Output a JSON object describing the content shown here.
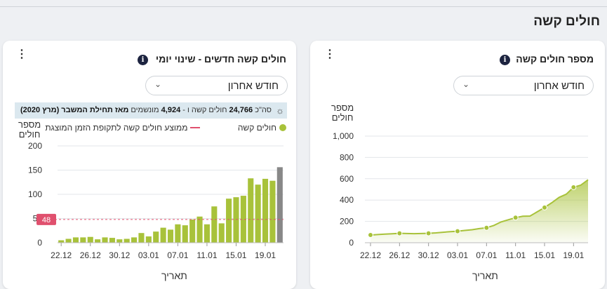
{
  "section": {
    "title": "חולים קשה"
  },
  "left_card": {
    "title": "חולים קשה חדשים - שינוי יומי",
    "info": "i",
    "menu": "⋮",
    "dropdown": "חודש אחרון",
    "banner": {
      "icon": "lightbulb-icon",
      "prefix": "סה\"כ",
      "total": "24,766",
      "mid": "חולים קשה ו -",
      "ventilated": "4,924",
      "suffix_text": "מונשמים",
      "since": "מאז תחילת המשבר (מרץ 2020)"
    },
    "legend_series": "חולים קשה",
    "legend_avg": "ממוצע חולים קשה לתקופת הזמן המוצגת",
    "ylabel_line1": "מספר",
    "ylabel_line2": "חולים",
    "xlabel": "תאריך",
    "avg_badge": "48"
  },
  "right_card": {
    "title": "מספר חולים קשה",
    "info": "i",
    "menu": "⋮",
    "dropdown": "חודש אחרון",
    "ylabel_line1": "מספר",
    "ylabel_line2": "חולים",
    "xlabel": "תאריך"
  },
  "chart_data": [
    {
      "type": "bar",
      "title": "חולים קשה חדשים - שינוי יומי",
      "xlabel": "תאריך",
      "ylabel": "מספר חולים",
      "ylim": [
        0,
        200
      ],
      "yticks": [
        0,
        50,
        100,
        150,
        200
      ],
      "tick_labels": [
        "22.12",
        "26.12",
        "30.12",
        "03.01",
        "07.01",
        "11.01",
        "15.01",
        "19.01"
      ],
      "series": [
        {
          "name": "חולים קשה",
          "color": "#a8c23a",
          "values": [
            5,
            8,
            11,
            11,
            12,
            7,
            11,
            10,
            7,
            8,
            11,
            20,
            13,
            23,
            31,
            27,
            38,
            36,
            48,
            54,
            38,
            75,
            40,
            91,
            94,
            97,
            133,
            120,
            132,
            128
          ]
        },
        {
          "name": "",
          "color": "#888888",
          "values": [
            156
          ]
        }
      ],
      "average": 48,
      "average_color": "#e0506e",
      "grid": true
    },
    {
      "type": "area",
      "title": "מספר חולים קשה",
      "xlabel": "תאריך",
      "ylabel": "מספר חולים",
      "ylim": [
        0,
        1000
      ],
      "yticks": [
        0,
        200,
        400,
        600,
        800,
        "1,000"
      ],
      "tick_labels": [
        "22.12",
        "26.12",
        "30.12",
        "03.01",
        "07.01",
        "11.01",
        "15.01",
        "19.01"
      ],
      "values": [
        72,
        76,
        80,
        84,
        88,
        86,
        85,
        86,
        88,
        92,
        98,
        104,
        108,
        115,
        122,
        132,
        140,
        162,
        195,
        215,
        235,
        248,
        250,
        290,
        330,
        375,
        425,
        455,
        520,
        540,
        590
      ],
      "marked_points": [
        0,
        4,
        8,
        12,
        16,
        20,
        24,
        28
      ],
      "color": "#a8c23a",
      "grid": true
    }
  ]
}
